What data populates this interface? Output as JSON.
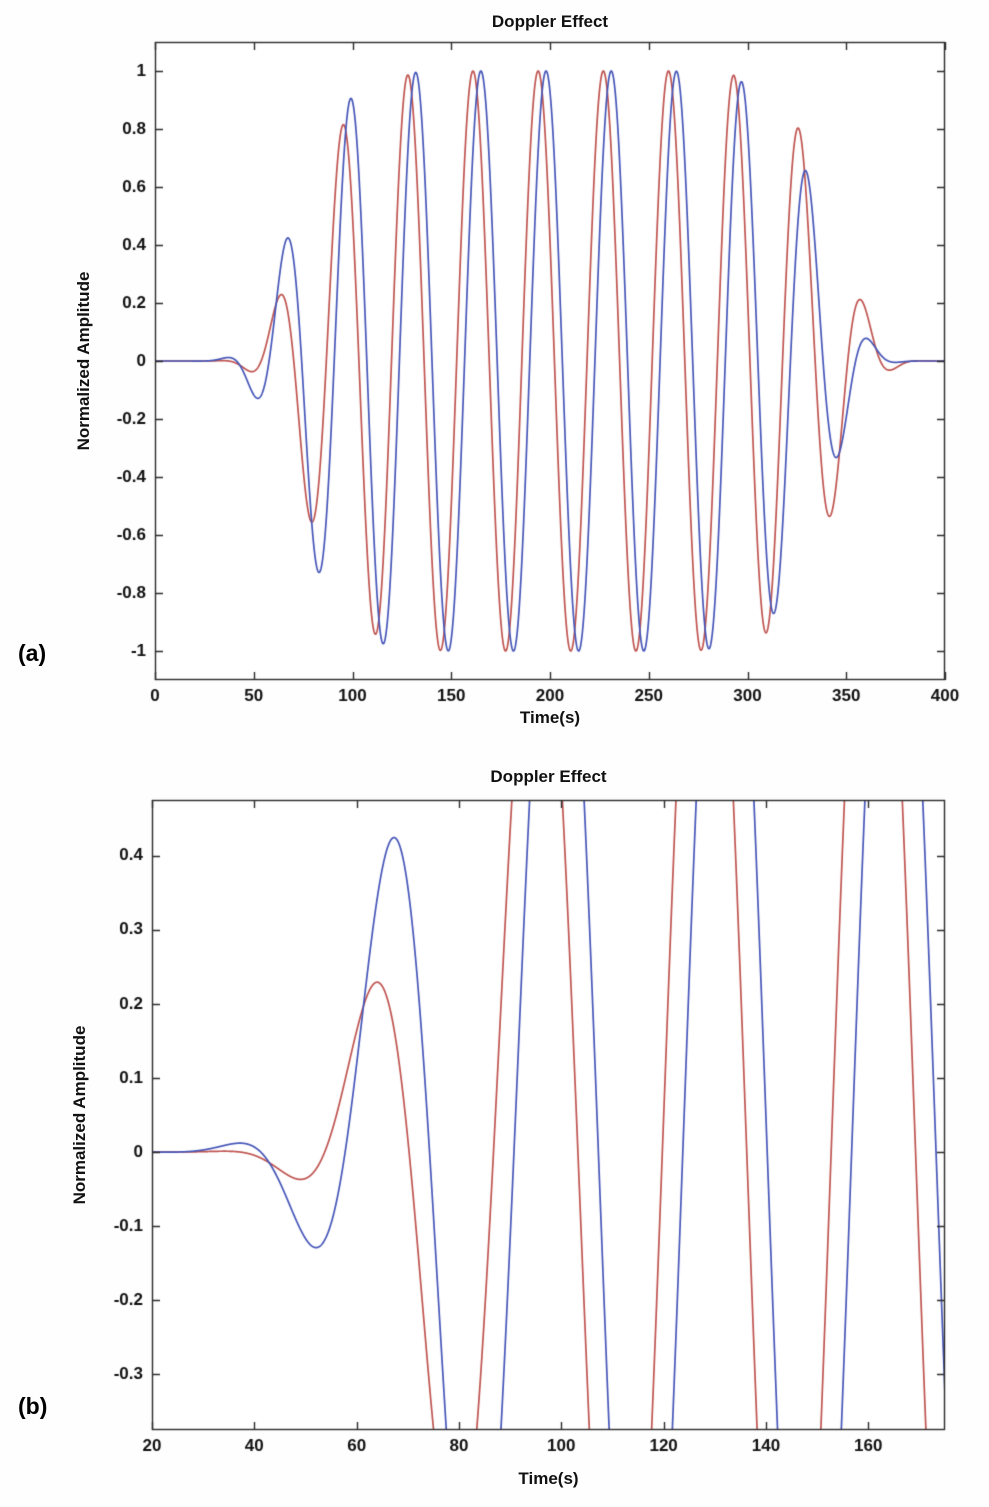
{
  "page": {
    "background": "#ffffff"
  },
  "chart_data": [
    {
      "type": "line",
      "panel_label": "(a)",
      "title": "Doppler Effect",
      "xlabel": "Time(s)",
      "ylabel": "Normalized Amplitude",
      "xlim": [
        0,
        400
      ],
      "ylim": [
        -1.1,
        1.1
      ],
      "xticks": [
        0,
        50,
        100,
        150,
        200,
        250,
        300,
        350,
        400
      ],
      "yticks": [
        -1,
        -0.8,
        -0.6,
        -0.4,
        -0.2,
        0,
        0.2,
        0.4,
        0.6,
        0.8,
        1
      ],
      "grid": false,
      "legend": false,
      "axis_color": "#2b2b2b",
      "tick_label_color": "#111111",
      "series": [
        {
          "name": "red-signal",
          "color": "#bf5450",
          "line_width": 1.7,
          "waveform": {
            "period_s": 33,
            "phase_peak_t": 53.75,
            "envelope_center": 210,
            "envelope_width": 140,
            "envelope_power": 8,
            "envelope_shift": 0
          },
          "key_points": [
            {
              "t": 62,
              "y": 0.19
            },
            {
              "t": 95,
              "y": 0.78
            },
            {
              "t": 128,
              "y": 1.0
            },
            {
              "t": 227,
              "y": 1.0
            },
            {
              "t": 326,
              "y": 0.84
            },
            {
              "t": 359,
              "y": 0.24
            }
          ]
        },
        {
          "name": "blue-signal",
          "color": "#4656b8",
          "line_width": 1.7,
          "waveform": {
            "period_s": 33,
            "phase_peak_t": 57.75,
            "envelope_center": 210,
            "envelope_width": 140,
            "envelope_power": 8,
            "envelope_shift": 6
          },
          "key_points": [
            {
              "t": 66,
              "y": 0.33
            },
            {
              "t": 99,
              "y": 0.93
            },
            {
              "t": 132,
              "y": 1.0
            },
            {
              "t": 231,
              "y": 1.0
            },
            {
              "t": 330,
              "y": 0.66
            },
            {
              "t": 363,
              "y": 0.08
            }
          ]
        }
      ]
    },
    {
      "type": "line",
      "panel_label": "(b)",
      "title": "Doppler Effect",
      "xlabel": "Time(s)",
      "ylabel": "Normalized Amplitude",
      "xlim": [
        20,
        175
      ],
      "ylim": [
        -0.375,
        0.475
      ],
      "xticks": [
        20,
        40,
        60,
        80,
        100,
        120,
        140,
        160
      ],
      "yticks": [
        -0.3,
        -0.2,
        -0.1,
        0,
        0.1,
        0.2,
        0.3,
        0.4
      ],
      "grid": false,
      "legend": false,
      "axis_color": "#2b2b2b",
      "tick_label_color": "#111111",
      "series": [
        {
          "name": "red-signal",
          "color": "#bf5450",
          "line_width": 1.7,
          "waveform": {
            "period_s": 33,
            "phase_peak_t": 53.75,
            "envelope_center": 210,
            "envelope_width": 140,
            "envelope_power": 8,
            "envelope_shift": 0
          },
          "key_points": [
            {
              "t": 50,
              "y": -0.04
            },
            {
              "t": 62,
              "y": 0.19
            },
            {
              "t": 78,
              "y": -0.375
            }
          ]
        },
        {
          "name": "blue-signal",
          "color": "#4656b8",
          "line_width": 1.7,
          "waveform": {
            "period_s": 33,
            "phase_peak_t": 57.75,
            "envelope_center": 210,
            "envelope_width": 140,
            "envelope_power": 8,
            "envelope_shift": 6
          },
          "key_points": [
            {
              "t": 52,
              "y": -0.08
            },
            {
              "t": 66,
              "y": 0.33
            },
            {
              "t": 82,
              "y": -0.375
            }
          ]
        }
      ]
    }
  ]
}
